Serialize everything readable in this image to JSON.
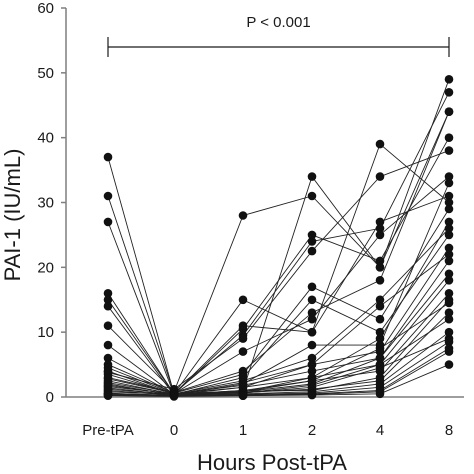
{
  "chart_data": {
    "type": "line",
    "title": "",
    "xlabel": "Hours Post-tPA",
    "ylabel": "PAI-1 (IU/mL)",
    "categories": [
      "Pre-tPA",
      "0",
      "1",
      "2",
      "4",
      "8"
    ],
    "ylim": [
      0,
      60
    ],
    "yticks": [
      0,
      10,
      20,
      30,
      40,
      50,
      60
    ],
    "grid": false,
    "legend": "none",
    "annotation": {
      "text": "P < 0.001",
      "from": "Pre-tPA",
      "to": "8"
    },
    "series": [
      {
        "values": [
          37.0,
          0.5,
          0.8,
          3.0,
          9.0,
          27.0
        ]
      },
      {
        "values": [
          31.0,
          0.6,
          0.8,
          2.5,
          7.5,
          14.5
        ]
      },
      {
        "values": [
          27.0,
          0.4,
          0.6,
          1.5,
          4.5,
          9.0
        ]
      },
      {
        "values": [
          16.0,
          0.5,
          1.5,
          5.0,
          14.0,
          22.0
        ]
      },
      {
        "values": [
          15.0,
          0.5,
          0.8,
          2.0,
          6.0,
          19.0
        ]
      },
      {
        "values": [
          14.0,
          0.3,
          0.6,
          1.8,
          5.0,
          12.0
        ]
      },
      {
        "values": [
          11.0,
          0.8,
          28.0,
          31.0,
          20.0,
          44.0
        ]
      },
      {
        "values": [
          8.0,
          0.4,
          1.0,
          34.0,
          20.0,
          49.0
        ]
      },
      {
        "values": [
          6.0,
          0.5,
          15.0,
          10.0,
          27.0,
          31.0
        ]
      },
      {
        "values": [
          5.0,
          0.6,
          9.5,
          24.0,
          26.0,
          47.0
        ]
      },
      {
        "values": [
          4.5,
          0.5,
          11.0,
          10.0,
          39.0,
          30.0
        ]
      },
      {
        "values": [
          4.0,
          0.4,
          10.5,
          25.0,
          21.0,
          40.0
        ]
      },
      {
        "values": [
          3.8,
          1.2,
          9.0,
          22.5,
          34.0,
          38.0
        ]
      },
      {
        "values": [
          3.5,
          0.5,
          7.0,
          12.0,
          25.0,
          34.0
        ]
      },
      {
        "values": [
          3.0,
          0.7,
          4.0,
          13.0,
          18.0,
          44.0
        ]
      },
      {
        "values": [
          2.8,
          0.6,
          3.5,
          17.0,
          12.0,
          29.0
        ]
      },
      {
        "values": [
          2.5,
          0.4,
          3.0,
          15.0,
          10.0,
          25.0
        ]
      },
      {
        "values": [
          2.2,
          0.5,
          2.5,
          6.0,
          15.0,
          26.0
        ]
      },
      {
        "values": [
          2.0,
          0.3,
          2.0,
          8.0,
          8.0,
          33.0
        ]
      },
      {
        "values": [
          1.8,
          0.4,
          2.2,
          5.0,
          7.0,
          23.0
        ]
      },
      {
        "values": [
          1.6,
          0.5,
          1.8,
          4.0,
          6.0,
          21.0
        ]
      },
      {
        "values": [
          1.4,
          0.3,
          1.5,
          3.0,
          5.0,
          18.0
        ]
      },
      {
        "values": [
          1.2,
          0.4,
          1.0,
          2.5,
          4.0,
          16.0
        ]
      },
      {
        "values": [
          1.0,
          0.3,
          0.9,
          1.0,
          3.0,
          15.0
        ]
      },
      {
        "values": [
          0.8,
          0.4,
          0.7,
          1.2,
          2.5,
          13.0
        ]
      },
      {
        "values": [
          0.6,
          0.2,
          0.5,
          0.8,
          2.0,
          10.0
        ]
      },
      {
        "values": [
          0.5,
          0.3,
          0.4,
          0.6,
          1.5,
          8.5
        ]
      },
      {
        "values": [
          0.4,
          0.2,
          0.3,
          0.5,
          1.0,
          7.5
        ]
      },
      {
        "values": [
          0.3,
          0.2,
          0.2,
          0.4,
          0.8,
          7.0
        ]
      },
      {
        "values": [
          0.2,
          0.1,
          0.2,
          0.3,
          0.5,
          5.0
        ]
      }
    ]
  }
}
